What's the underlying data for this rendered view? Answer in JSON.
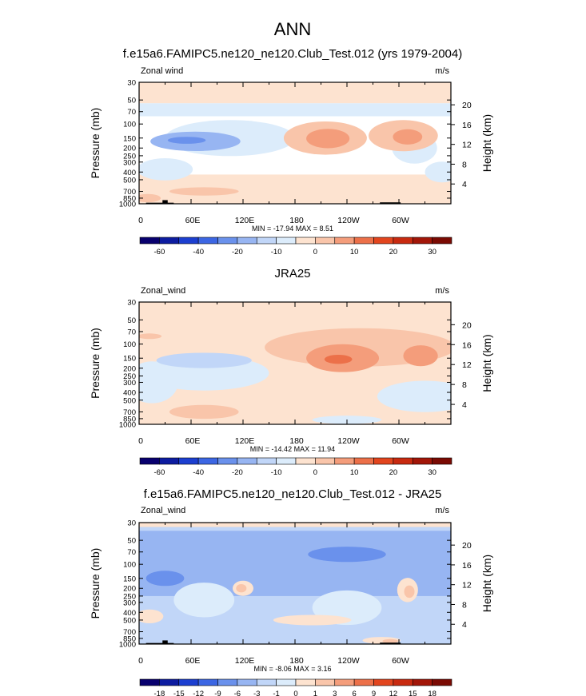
{
  "figure": {
    "title": "ANN"
  },
  "colors": {
    "levels": [
      "#08006e",
      "#0d1ca0",
      "#1c3fd0",
      "#3c66e3",
      "#6a91ec",
      "#97b5f2",
      "#c1d6f8",
      "#dcecfb",
      "#fde3d0",
      "#f9c5aa",
      "#f49d7b",
      "#ec7049",
      "#e2451e",
      "#c82a10",
      "#a21608",
      "#7a0a03"
    ]
  },
  "chart_data": [
    {
      "type": "heatmap",
      "title": "f.e15a6.FAMIPC5.ne120_ne120.Club_Test.012 (yrs 1979-2004)",
      "left_label": "Zonal wind",
      "units": "m/s",
      "ylabel": "Pressure (mb)",
      "ylabel_right": "Height (km)",
      "pressure_ticks": [
        "30",
        "50",
        "70",
        "100",
        "150",
        "200",
        "250",
        "300",
        "400",
        "500",
        "700",
        "850",
        "1000"
      ],
      "height_ticks": [
        "20",
        "16",
        "12",
        "8",
        "4"
      ],
      "lon_ticks": [
        "0",
        "60E",
        "120E",
        "180",
        "120W",
        "60W"
      ],
      "stats": "MIN = -17.94  MAX =  8.51",
      "colorbar_labels": [
        "-60",
        "-40",
        "-20",
        "-10",
        "0",
        "10",
        "20",
        "30"
      ],
      "colorbar_bins": [
        "<-60",
        "-60",
        "-50",
        "-40",
        "-30",
        "-20",
        "-15",
        "-10",
        "-5",
        "0",
        "5",
        "10",
        "15",
        "20",
        "25",
        "30"
      ],
      "features": [
        {
          "kind": "band",
          "level": 8,
          "p_top": 30,
          "p_bot": 55
        },
        {
          "kind": "band",
          "level": 7,
          "p_top": 55,
          "p_bot": 80
        },
        {
          "kind": "band",
          "level": 8,
          "p_top": 430,
          "p_bot": 1000
        },
        {
          "kind": "blob",
          "level": 7,
          "lon_c": 105,
          "p_c": 150,
          "lon_r": 75,
          "p_r": 0.52
        },
        {
          "kind": "blob",
          "level": 7,
          "lon_c": 30,
          "p_c": 370,
          "lon_r": 32,
          "p_r": 0.32
        },
        {
          "kind": "blob",
          "level": 5,
          "lon_c": 65,
          "p_c": 165,
          "lon_r": 52,
          "p_r": 0.28
        },
        {
          "kind": "blob",
          "level": 4,
          "lon_c": 55,
          "p_c": 160,
          "lon_r": 22,
          "p_r": 0.1
        },
        {
          "kind": "blob",
          "level": 7,
          "lon_c": 318,
          "p_c": 200,
          "lon_r": 26,
          "p_r": 0.45
        },
        {
          "kind": "blob",
          "level": 7,
          "lon_c": 350,
          "p_c": 400,
          "lon_r": 20,
          "p_r": 0.3
        },
        {
          "kind": "blob",
          "level": 9,
          "lon_c": 215,
          "p_c": 150,
          "lon_r": 48,
          "p_r": 0.48
        },
        {
          "kind": "blob",
          "level": 10,
          "lon_c": 218,
          "p_c": 152,
          "lon_r": 25,
          "p_r": 0.28
        },
        {
          "kind": "blob",
          "level": 9,
          "lon_c": 305,
          "p_c": 140,
          "lon_r": 40,
          "p_r": 0.45
        },
        {
          "kind": "blob",
          "level": 10,
          "lon_c": 310,
          "p_c": 145,
          "lon_r": 17,
          "p_r": 0.22
        },
        {
          "kind": "blob",
          "level": 9,
          "lon_c": 75,
          "p_c": 700,
          "lon_r": 40,
          "p_r": 0.12
        },
        {
          "kind": "blob",
          "level": 9,
          "lon_c": 10,
          "p_c": 850,
          "lon_r": 15,
          "p_r": 0.12
        }
      ],
      "topo": [
        {
          "kind": "bar",
          "lon0": 8,
          "lon1": 40,
          "p_top": 970
        },
        {
          "kind": "bar",
          "lon0": 27,
          "lon1": 33,
          "p_top": 900
        },
        {
          "kind": "bar",
          "lon0": 278,
          "lon1": 302,
          "p_top": 960
        }
      ]
    },
    {
      "type": "heatmap",
      "title": "JRA25",
      "left_label": "Zonal_wind",
      "units": "m/s",
      "ylabel": "Pressure (mb)",
      "ylabel_right": "Height (km)",
      "pressure_ticks": [
        "30",
        "50",
        "70",
        "100",
        "150",
        "200",
        "250",
        "300",
        "400",
        "500",
        "700",
        "850",
        "1000"
      ],
      "height_ticks": [
        "20",
        "16",
        "12",
        "8",
        "4"
      ],
      "lon_ticks": [
        "0",
        "60E",
        "120E",
        "180",
        "120W",
        "60W"
      ],
      "stats": "MIN = -14.42  MAX = 11.94",
      "colorbar_labels": [
        "-60",
        "-40",
        "-20",
        "-10",
        "0",
        "10",
        "20",
        "30"
      ],
      "colorbar_bins": [
        "<-60",
        "-60",
        "-50",
        "-40",
        "-30",
        "-20",
        "-15",
        "-10",
        "-5",
        "0",
        "5",
        "10",
        "15",
        "20",
        "25",
        "30"
      ],
      "features": [
        {
          "kind": "band",
          "level": 8,
          "p_top": 30,
          "p_bot": 1000
        },
        {
          "kind": "blob",
          "level": 9,
          "lon_c": 255,
          "p_c": 110,
          "lon_r": 110,
          "p_r": 0.55
        },
        {
          "kind": "blob",
          "level": 7,
          "lon_c": 75,
          "p_c": 230,
          "lon_r": 75,
          "p_r": 0.5
        },
        {
          "kind": "blob",
          "level": 7,
          "lon_c": 15,
          "p_c": 300,
          "lon_r": 30,
          "p_r": 0.6
        },
        {
          "kind": "blob",
          "level": 6,
          "lon_c": 75,
          "p_c": 160,
          "lon_r": 55,
          "p_r": 0.22
        },
        {
          "kind": "blob",
          "level": 7,
          "lon_c": 330,
          "p_c": 450,
          "lon_r": 55,
          "p_r": 0.45
        },
        {
          "kind": "blob",
          "level": 7,
          "lon_c": 240,
          "p_c": 880,
          "lon_r": 40,
          "p_r": 0.12
        },
        {
          "kind": "blob",
          "level": 10,
          "lon_c": 235,
          "p_c": 150,
          "lon_r": 42,
          "p_r": 0.4
        },
        {
          "kind": "blob",
          "level": 11,
          "lon_c": 230,
          "p_c": 155,
          "lon_r": 16,
          "p_r": 0.13
        },
        {
          "kind": "blob",
          "level": 10,
          "lon_c": 325,
          "p_c": 140,
          "lon_r": 20,
          "p_r": 0.3
        },
        {
          "kind": "blob",
          "level": 9,
          "lon_c": 75,
          "p_c": 700,
          "lon_r": 40,
          "p_r": 0.2
        },
        {
          "kind": "blob",
          "level": 9,
          "lon_c": 12,
          "p_c": 80,
          "lon_r": 14,
          "p_r": 0.08
        }
      ],
      "topo": []
    },
    {
      "type": "heatmap",
      "title": "f.e15a6.FAMIPC5.ne120_ne120.Club_Test.012 - JRA25",
      "left_label": "Zonal_wind",
      "units": "m/s",
      "ylabel": "Pressure (mb)",
      "ylabel_right": "Height (km)",
      "pressure_ticks": [
        "30",
        "50",
        "70",
        "100",
        "150",
        "200",
        "250",
        "300",
        "400",
        "500",
        "700",
        "850",
        "1000"
      ],
      "height_ticks": [
        "20",
        "16",
        "12",
        "8",
        "4"
      ],
      "lon_ticks": [
        "0",
        "60E",
        "120E",
        "180",
        "120W",
        "60W"
      ],
      "stats": "MIN = -8.06  MAX =  3.16",
      "colorbar_labels": [
        "-18",
        "-15",
        "-12",
        "-9",
        "-6",
        "-3",
        "-1",
        "0",
        "1",
        "3",
        "6",
        "9",
        "12",
        "15",
        "18"
      ],
      "colorbar_bins": [
        "<-18",
        "-18",
        "-15",
        "-12",
        "-9",
        "-6",
        "-3",
        "-1",
        "0",
        "1",
        "3",
        "6",
        "9",
        "12",
        "15",
        "18"
      ],
      "features": [
        {
          "kind": "band",
          "level": 6,
          "p_top": 30,
          "p_bot": 1000
        },
        {
          "kind": "band",
          "level": 8,
          "p_top": 30,
          "p_bot": 34
        },
        {
          "kind": "band",
          "level": 5,
          "p_top": 38,
          "p_bot": 250
        },
        {
          "kind": "blob",
          "level": 7,
          "lon_c": 75,
          "p_c": 280,
          "lon_r": 35,
          "p_r": 0.5
        },
        {
          "kind": "blob",
          "level": 7,
          "lon_c": 240,
          "p_c": 350,
          "lon_r": 40,
          "p_r": 0.5
        },
        {
          "kind": "blob",
          "level": 4,
          "lon_c": 240,
          "p_c": 75,
          "lon_r": 45,
          "p_r": 0.22
        },
        {
          "kind": "blob",
          "level": 4,
          "lon_c": 30,
          "p_c": 150,
          "lon_r": 22,
          "p_r": 0.22
        },
        {
          "kind": "blob",
          "level": 8,
          "lon_c": 120,
          "p_c": 200,
          "lon_r": 12,
          "p_r": 0.22
        },
        {
          "kind": "blob",
          "level": 9,
          "lon_c": 118,
          "p_c": 200,
          "lon_r": 6,
          "p_r": 0.12
        },
        {
          "kind": "blob",
          "level": 8,
          "lon_c": 310,
          "p_c": 210,
          "lon_r": 12,
          "p_r": 0.35
        },
        {
          "kind": "blob",
          "level": 9,
          "lon_c": 312,
          "p_c": 220,
          "lon_r": 6,
          "p_r": 0.18
        },
        {
          "kind": "blob",
          "level": 8,
          "lon_c": 12,
          "p_c": 450,
          "lon_r": 16,
          "p_r": 0.2
        },
        {
          "kind": "blob",
          "level": 8,
          "lon_c": 280,
          "p_c": 900,
          "lon_r": 22,
          "p_r": 0.1
        },
        {
          "kind": "blob",
          "level": 9,
          "lon_c": 290,
          "p_c": 920,
          "lon_r": 9,
          "p_r": 0.06
        },
        {
          "kind": "blob",
          "level": 5,
          "lon_c": 275,
          "p_c": 170,
          "lon_r": 5,
          "p_r": 0.08
        },
        {
          "kind": "blob",
          "level": 8,
          "lon_c": 200,
          "p_c": 500,
          "lon_r": 45,
          "p_r": 0.15
        }
      ],
      "topo": [
        {
          "kind": "bar",
          "lon0": 8,
          "lon1": 40,
          "p_top": 970
        },
        {
          "kind": "bar",
          "lon0": 27,
          "lon1": 33,
          "p_top": 900
        },
        {
          "kind": "bar",
          "lon0": 278,
          "lon1": 302,
          "p_top": 960
        }
      ]
    }
  ]
}
